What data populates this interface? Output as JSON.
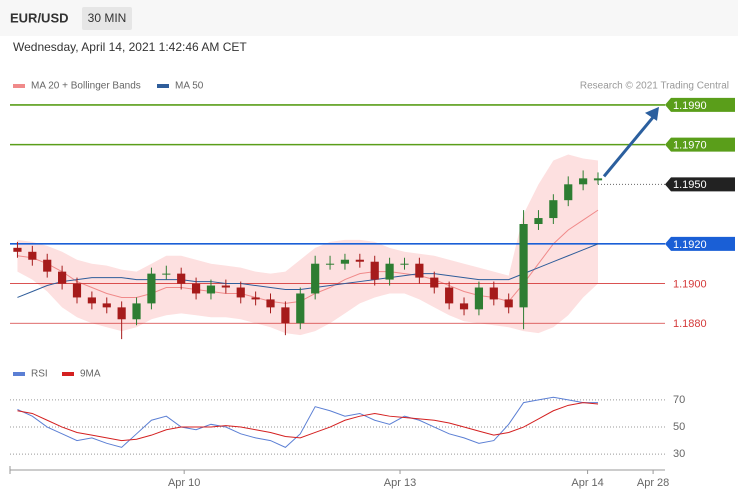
{
  "chart_data": {
    "type": "candlestick",
    "symbol": "EUR/USD",
    "timeframe": "30 MIN",
    "subtitle": "Wednesday, April 14, 2021 1:42:46 AM CET",
    "credit": "Research © 2021 Trading Central",
    "xlim": [
      -0.5,
      43.5
    ],
    "xticks": [
      {
        "value": 11.2,
        "label": "Apr 10"
      },
      {
        "value": 25.7,
        "label": "Apr 13"
      },
      {
        "value": 38.3,
        "label": "Apr 14"
      },
      {
        "value": 42.7,
        "label": "Apr 28"
      }
    ],
    "ylim": [
      1.1864,
      1.1995
    ],
    "up_color": "#2e7d32",
    "down_color": "#a61b1b",
    "open": [
      1.1918,
      1.1916,
      1.1912,
      1.1906,
      1.19,
      1.1893,
      1.189,
      1.1888,
      1.1882,
      1.189,
      1.1905,
      1.1905,
      1.19,
      1.1895,
      1.1899,
      1.1898,
      1.1893,
      1.1892,
      1.1888,
      1.188,
      1.1895,
      1.191,
      1.191,
      1.1912,
      1.1911,
      1.1902,
      1.191,
      1.191,
      1.1903,
      1.1898,
      1.189,
      1.1887,
      1.1898,
      1.1892,
      1.1888,
      1.193,
      1.1933,
      1.1942,
      1.195,
      1.1952
    ],
    "high": [
      1.1921,
      1.1919,
      1.1915,
      1.1909,
      1.1903,
      1.1896,
      1.1893,
      1.1891,
      1.1893,
      1.1908,
      1.1909,
      1.1908,
      1.1903,
      1.1902,
      1.1902,
      1.1901,
      1.1896,
      1.1895,
      1.1891,
      1.1898,
      1.1914,
      1.1914,
      1.1915,
      1.1915,
      1.1914,
      1.1913,
      1.1913,
      1.1913,
      1.1906,
      1.1901,
      1.1893,
      1.1901,
      1.1901,
      1.1895,
      1.1937,
      1.1937,
      1.1945,
      1.1954,
      1.1957,
      1.1956
    ],
    "low": [
      1.1913,
      1.1909,
      1.1903,
      1.1897,
      1.189,
      1.1887,
      1.1885,
      1.1872,
      1.1879,
      1.1887,
      1.1902,
      1.1897,
      1.1892,
      1.1892,
      1.1895,
      1.189,
      1.1889,
      1.1885,
      1.1874,
      1.1877,
      1.1892,
      1.1907,
      1.1907,
      1.1908,
      1.1899,
      1.1899,
      1.1907,
      1.19,
      1.1895,
      1.1887,
      1.1884,
      1.1884,
      1.1889,
      1.1885,
      1.1877,
      1.1927,
      1.193,
      1.1939,
      1.1947,
      1.195
    ],
    "close": [
      1.1916,
      1.1912,
      1.1906,
      1.19,
      1.1893,
      1.189,
      1.1888,
      1.1882,
      1.189,
      1.1905,
      1.1905,
      1.19,
      1.1895,
      1.1899,
      1.1898,
      1.1893,
      1.1892,
      1.1888,
      1.188,
      1.1895,
      1.191,
      1.191,
      1.1912,
      1.1911,
      1.1902,
      1.191,
      1.191,
      1.1903,
      1.1898,
      1.189,
      1.1887,
      1.1898,
      1.1892,
      1.1888,
      1.193,
      1.1933,
      1.1942,
      1.195,
      1.1953,
      1.1953
    ],
    "bands": {
      "name": "MA 20 + Bollinger Bands",
      "color": "#f08a8a",
      "fill": "#fde0e0",
      "upper": [
        1.1922,
        1.1921,
        1.1919,
        1.1916,
        1.1912,
        1.191,
        1.1909,
        1.1907,
        1.1906,
        1.191,
        1.1914,
        1.1914,
        1.1912,
        1.191,
        1.1909,
        1.1908,
        1.1906,
        1.1905,
        1.1906,
        1.1912,
        1.1918,
        1.1921,
        1.1922,
        1.1922,
        1.1921,
        1.1918,
        1.1916,
        1.1915,
        1.1914,
        1.1912,
        1.191,
        1.1908,
        1.1906,
        1.1904,
        1.1935,
        1.195,
        1.1962,
        1.1965,
        1.1963,
        1.1962
      ],
      "lower": [
        1.1906,
        1.1902,
        1.1896,
        1.1888,
        1.1883,
        1.188,
        1.1878,
        1.1876,
        1.1878,
        1.1882,
        1.1884,
        1.1885,
        1.1884,
        1.1883,
        1.1883,
        1.1882,
        1.188,
        1.1878,
        1.1875,
        1.1874,
        1.1876,
        1.188,
        1.1885,
        1.189,
        1.1893,
        1.1895,
        1.1895,
        1.1892,
        1.1888,
        1.1884,
        1.1881,
        1.188,
        1.1879,
        1.1878,
        1.1876,
        1.1875,
        1.1878,
        1.1884,
        1.1893,
        1.19
      ],
      "values": [
        1.1914,
        1.1913,
        1.191,
        1.1906,
        1.1901,
        1.1898,
        1.1895,
        1.1893,
        1.1893,
        1.1895,
        1.1898,
        1.1898,
        1.1897,
        1.1896,
        1.1895,
        1.1895,
        1.1893,
        1.1891,
        1.189,
        1.1891,
        1.1895,
        1.1898,
        1.1902,
        1.1905,
        1.1906,
        1.1906,
        1.1905,
        1.1904,
        1.1902,
        1.1899,
        1.1896,
        1.1894,
        1.1893,
        1.1891,
        1.19,
        1.191,
        1.192,
        1.1927,
        1.1932,
        1.1937
      ]
    },
    "series": [
      {
        "name": "MA 50",
        "color": "#2f5d9a",
        "values": [
          1.1893,
          1.1896,
          1.1899,
          1.1901,
          1.1902,
          1.1903,
          1.1903,
          1.1903,
          1.1902,
          1.1902,
          1.1902,
          1.1902,
          1.1901,
          1.1901,
          1.19,
          1.19,
          1.1899,
          1.1898,
          1.1897,
          1.1897,
          1.1898,
          1.1899,
          1.19,
          1.1901,
          1.1902,
          1.1903,
          1.1904,
          1.1905,
          1.1905,
          1.1904,
          1.1903,
          1.1902,
          1.1902,
          1.1902,
          1.1905,
          1.1908,
          1.1911,
          1.1914,
          1.1917,
          1.192
        ]
      }
    ],
    "levels": [
      {
        "value": 1.199,
        "label": "1.1990",
        "color": "#5a9e1a",
        "boxed": true,
        "line": "solid"
      },
      {
        "value": 1.197,
        "label": "1.1970",
        "color": "#5a9e1a",
        "boxed": true,
        "line": "solid"
      },
      {
        "value": 1.195,
        "label": "1.1950",
        "color": "#222222",
        "boxed": true,
        "line": "dotted"
      },
      {
        "value": 1.192,
        "label": "1.1920",
        "color": "#1a5fd6",
        "boxed": true,
        "line": "solid"
      },
      {
        "value": 1.19,
        "label": "1.1900",
        "color": "#d43a3a",
        "boxed": false,
        "line": "thin"
      },
      {
        "value": 1.188,
        "label": "1.1880",
        "color": "#d43a3a",
        "boxed": false,
        "line": "thin"
      }
    ],
    "indicator": {
      "ylim": [
        22,
        81
      ],
      "yticks": [
        30,
        50,
        70
      ],
      "series": [
        {
          "name": "RSI",
          "color": "#5b7fd4",
          "values": [
            63,
            58,
            50,
            45,
            40,
            42,
            38,
            35,
            45,
            55,
            58,
            50,
            48,
            52,
            50,
            45,
            42,
            40,
            35,
            45,
            65,
            62,
            58,
            60,
            55,
            52,
            58,
            55,
            50,
            45,
            42,
            38,
            40,
            52,
            68,
            70,
            72,
            70,
            68,
            68
          ]
        },
        {
          "name": "9MA",
          "color": "#d42020",
          "values": [
            62,
            60,
            55,
            50,
            46,
            44,
            42,
            40,
            41,
            44,
            48,
            50,
            50,
            50,
            51,
            50,
            48,
            46,
            43,
            42,
            46,
            50,
            55,
            58,
            60,
            58,
            57,
            56,
            55,
            53,
            50,
            47,
            44,
            46,
            50,
            56,
            62,
            66,
            68,
            67
          ]
        }
      ]
    }
  }
}
